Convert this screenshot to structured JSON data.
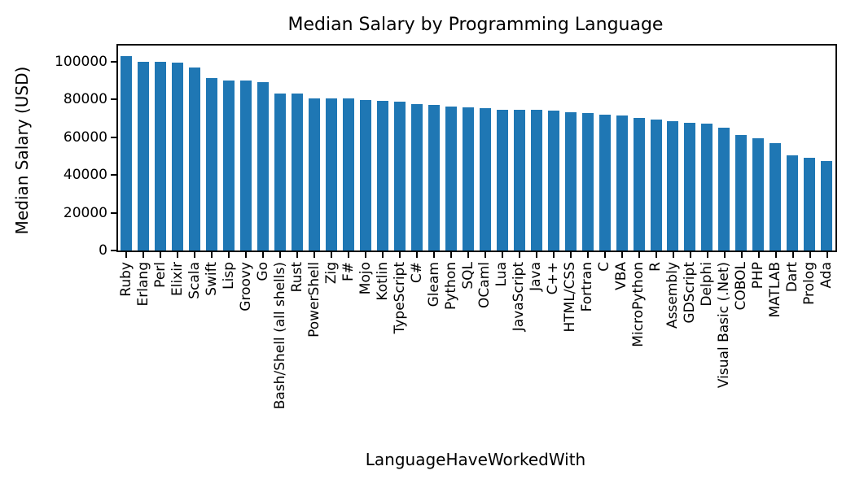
{
  "chart_data": {
    "type": "bar",
    "title": "Median Salary by Programming Language",
    "xlabel": "LanguageHaveWorkedWith",
    "ylabel": "Median Salary (USD)",
    "bar_color": "#1f77b4",
    "axis_color": "#000000",
    "background_color": "#ffffff",
    "grid": false,
    "legend": false,
    "ylim": [
      0,
      108500
    ],
    "yticks": [
      0,
      20000,
      40000,
      60000,
      80000,
      100000
    ],
    "categories": [
      "Ruby",
      "Erlang",
      "Perl",
      "Elixir",
      "Scala",
      "Swift",
      "Lisp",
      "Groovy",
      "Go",
      "Bash/Shell (all shells)",
      "Rust",
      "PowerShell",
      "Zig",
      "F#",
      "Mojo",
      "Kotlin",
      "TypeScript",
      "C#",
      "Gleam",
      "Python",
      "SQL",
      "OCaml",
      "Lua",
      "JavaScript",
      "Java",
      "C++",
      "HTML/CSS",
      "Fortran",
      "C",
      "VBA",
      "MicroPython",
      "R",
      "Assembly",
      "GDScript",
      "Delphi",
      "Visual Basic (.Net)",
      "COBOL",
      "PHP",
      "MATLAB",
      "Dart",
      "Prolog",
      "Ada"
    ],
    "values": [
      103000,
      100000,
      100000,
      99400,
      97000,
      91400,
      90000,
      90000,
      89000,
      83000,
      83000,
      80600,
      80600,
      80400,
      79500,
      79400,
      79000,
      77400,
      77000,
      76400,
      75800,
      75500,
      74600,
      74600,
      74300,
      74000,
      73400,
      72800,
      72100,
      71600,
      70100,
      69400,
      68600,
      67700,
      67000,
      65000,
      61000,
      59600,
      57000,
      50400,
      49000,
      47200
    ]
  }
}
